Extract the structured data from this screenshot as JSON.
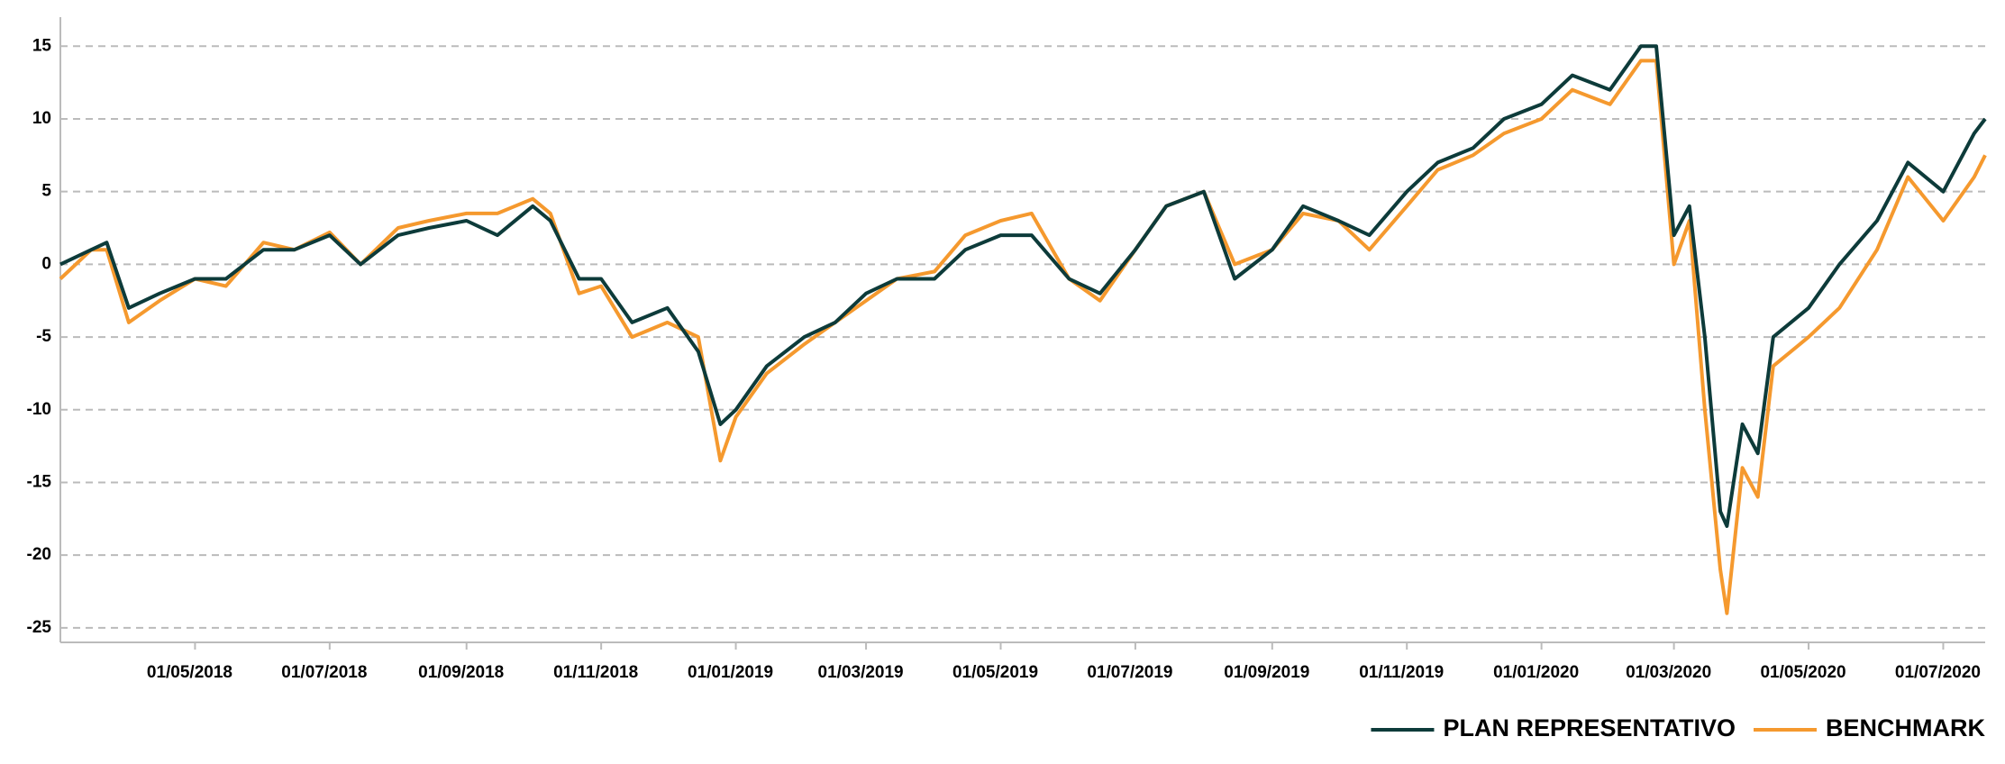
{
  "chart_data": {
    "type": "line",
    "x": [
      "01/03/2018",
      "15/03/2018",
      "22/03/2018",
      "01/04/2018",
      "15/04/2018",
      "01/05/2018",
      "15/05/2018",
      "01/06/2018",
      "15/06/2018",
      "01/07/2018",
      "15/07/2018",
      "01/08/2018",
      "15/08/2018",
      "01/09/2018",
      "15/09/2018",
      "01/10/2018",
      "09/10/2018",
      "22/10/2018",
      "01/11/2018",
      "15/11/2018",
      "01/12/2018",
      "15/12/2018",
      "25/12/2018",
      "01/01/2019",
      "15/01/2019",
      "01/02/2019",
      "15/02/2019",
      "01/03/2019",
      "15/03/2019",
      "01/04/2019",
      "15/04/2019",
      "01/05/2019",
      "15/05/2019",
      "01/06/2019",
      "15/06/2019",
      "01/07/2019",
      "15/07/2019",
      "01/08/2019",
      "15/08/2019",
      "01/09/2019",
      "15/09/2019",
      "01/10/2019",
      "15/10/2019",
      "01/11/2019",
      "15/11/2019",
      "01/12/2019",
      "15/12/2019",
      "01/01/2020",
      "15/01/2020",
      "01/02/2020",
      "15/02/2020",
      "22/02/2020",
      "01/03/2020",
      "08/03/2020",
      "15/03/2020",
      "22/03/2020",
      "25/03/2020",
      "01/04/2020",
      "08/04/2020",
      "15/04/2020",
      "01/05/2020",
      "15/05/2020",
      "01/06/2020",
      "15/06/2020",
      "01/07/2020",
      "15/07/2020",
      "20/07/2020"
    ],
    "series": [
      {
        "name": "PLAN REPRESENTATIVO",
        "color": "#0d3b3a",
        "values": [
          0,
          1,
          1.5,
          -3,
          -2,
          -1,
          -1,
          1,
          1,
          2,
          0,
          2,
          2.5,
          3,
          2,
          4,
          3,
          -1,
          -1,
          -4,
          -3,
          -6,
          -11,
          -10,
          -7,
          -5,
          -4,
          -2,
          -1,
          -1,
          1,
          2,
          2,
          -1,
          -2,
          1,
          4,
          5,
          -1,
          1,
          4,
          3,
          2,
          5,
          7,
          8,
          10,
          11,
          13,
          12,
          15,
          15,
          2,
          4,
          -5,
          -17,
          -18,
          -11,
          -13,
          -5,
          -3,
          0,
          3,
          7,
          5,
          9,
          10
        ]
      },
      {
        "name": "BENCHMARK",
        "color": "#f5992e",
        "values": [
          -1,
          1,
          1,
          -4,
          -2.5,
          -1,
          -1.5,
          1.5,
          1,
          2.2,
          0,
          2.5,
          3,
          3.5,
          3.5,
          4.5,
          3.5,
          -2,
          -1.5,
          -5,
          -4,
          -5,
          -13.5,
          -10.5,
          -7.5,
          -5.5,
          -4,
          -2.5,
          -1,
          -0.5,
          2,
          3,
          3.5,
          -1,
          -2.5,
          1,
          4,
          5,
          0,
          1,
          3.5,
          3,
          1,
          4,
          6.5,
          7.5,
          9,
          10,
          12,
          11,
          14,
          14,
          0,
          3,
          -10,
          -21,
          -24,
          -14,
          -16,
          -7,
          -5,
          -3,
          1,
          6,
          3,
          6,
          7.5
        ]
      }
    ],
    "xlim": [
      "01/03/2018",
      "20/07/2020"
    ],
    "xticks": [
      "01/05/2018",
      "01/07/2018",
      "01/09/2018",
      "01/11/2018",
      "01/01/2019",
      "01/03/2019",
      "01/05/2019",
      "01/07/2019",
      "01/09/2019",
      "01/11/2019",
      "01/01/2020",
      "01/03/2020",
      "01/05/2020",
      "01/07/2020"
    ],
    "ylim": [
      -26,
      17
    ],
    "yticks": [
      -25,
      -20,
      -15,
      -10,
      -5,
      0,
      5,
      10,
      15
    ],
    "grid": true,
    "legend": "bottom-right"
  }
}
